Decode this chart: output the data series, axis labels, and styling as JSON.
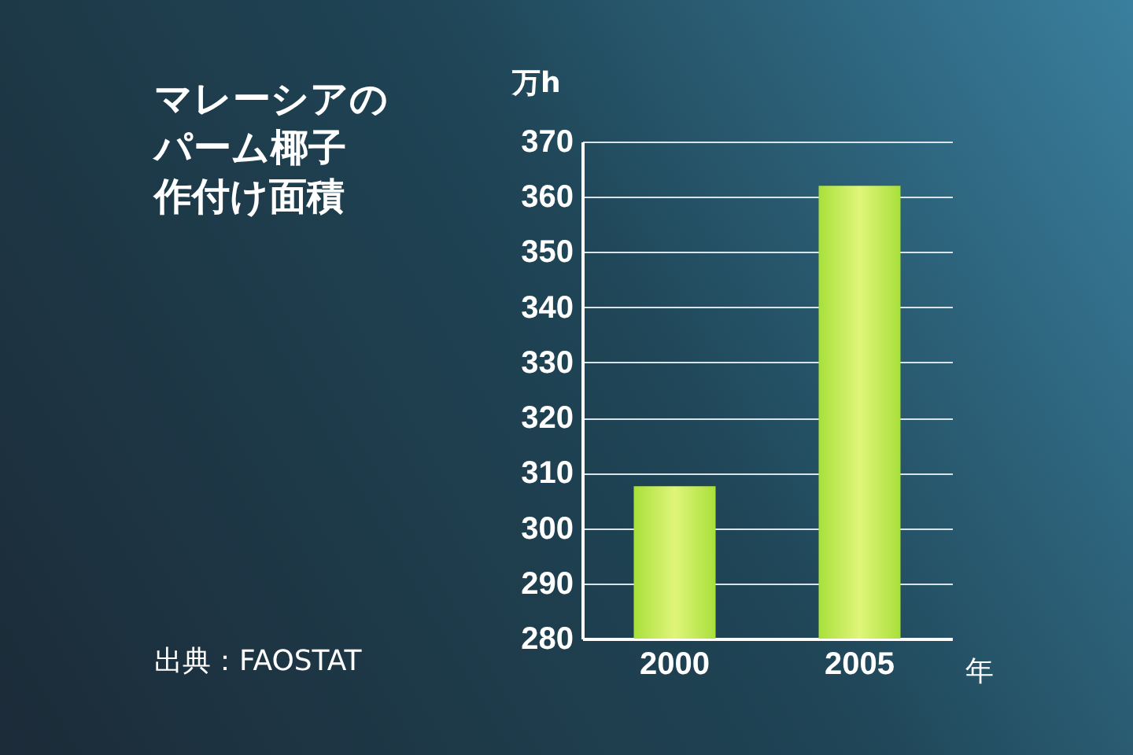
{
  "chart_data": {
    "type": "bar",
    "title": "マレーシアのパーム椰子作付け面積",
    "ylabel": "万h",
    "xlabel": "年",
    "annotations": [
      "出典：FAOSTAT"
    ],
    "categories": [
      "2000",
      "2005"
    ],
    "values": [
      307.6,
      362
    ],
    "color": "#a8e03a",
    "ylim": [
      280,
      370
    ],
    "yticks": [
      280,
      290,
      300,
      310,
      320,
      330,
      340,
      350,
      360,
      370
    ],
    "grid": "y"
  }
}
